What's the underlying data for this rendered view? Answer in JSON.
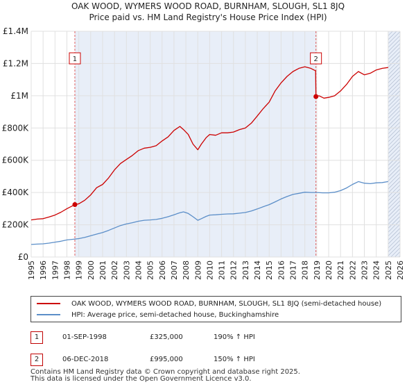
{
  "chart_data": {
    "type": "line",
    "title": "OAK WOOD, WYMERS WOOD ROAD, BURNHAM, SLOUGH, SL1 8JQ",
    "subtitle": "Price paid vs. HM Land Registry's House Price Index (HPI)",
    "xlim": [
      1995,
      2026
    ],
    "ylim": [
      0,
      1400000
    ],
    "x_ticks": [
      1995,
      1996,
      1997,
      1998,
      1999,
      2000,
      2001,
      2002,
      2003,
      2004,
      2005,
      2006,
      2007,
      2008,
      2009,
      2010,
      2011,
      2012,
      2013,
      2014,
      2015,
      2016,
      2017,
      2018,
      2019,
      2020,
      2021,
      2022,
      2023,
      2024,
      2025,
      2026
    ],
    "y_ticks": [
      {
        "value": 0,
        "label": "£0"
      },
      {
        "value": 200000,
        "label": "£200K"
      },
      {
        "value": 400000,
        "label": "£400K"
      },
      {
        "value": 600000,
        "label": "£600K"
      },
      {
        "value": 800000,
        "label": "£800K"
      },
      {
        "value": 1000000,
        "label": "£1M"
      },
      {
        "value": 1200000,
        "label": "£1.2M"
      },
      {
        "value": 1400000,
        "label": "£1.4M"
      }
    ],
    "grid": true,
    "colors": {
      "property": "#cc0000",
      "hpi": "#5b8ec8",
      "grid": "#e0e0e0",
      "shade": "#e8eef8",
      "vline": "#e06060"
    },
    "shaded_regions": [
      [
        1998.67,
        2018.93
      ],
      [
        2025.0,
        2026.0
      ]
    ],
    "series": [
      {
        "name": "OAK WOOD, WYMERS WOOD ROAD, BURNHAM, SLOUGH, SL1 8JQ (semi-detached house)",
        "color": "#cc0000",
        "x": [
          1995.0,
          1995.5,
          1996.0,
          1996.5,
          1997.0,
          1997.5,
          1998.0,
          1998.67,
          1999.0,
          1999.5,
          2000.0,
          2000.5,
          2001.0,
          2001.5,
          2002.0,
          2002.5,
          2003.0,
          2003.5,
          2004.0,
          2004.5,
          2005.0,
          2005.5,
          2006.0,
          2006.5,
          2007.0,
          2007.5,
          2007.8,
          2008.2,
          2008.6,
          2009.0,
          2009.3,
          2009.7,
          2010.0,
          2010.5,
          2011.0,
          2011.5,
          2012.0,
          2012.5,
          2013.0,
          2013.5,
          2014.0,
          2014.5,
          2015.0,
          2015.5,
          2016.0,
          2016.5,
          2017.0,
          2017.5,
          2018.0,
          2018.5,
          2018.9,
          2018.93,
          2019.2,
          2019.6,
          2020.0,
          2020.5,
          2021.0,
          2021.5,
          2022.0,
          2022.5,
          2023.0,
          2023.5,
          2024.0,
          2024.5,
          2025.0
        ],
        "values": [
          230000,
          235000,
          238000,
          248000,
          260000,
          278000,
          300000,
          325000,
          330000,
          352000,
          385000,
          430000,
          450000,
          490000,
          540000,
          580000,
          605000,
          630000,
          660000,
          675000,
          680000,
          690000,
          720000,
          745000,
          785000,
          810000,
          790000,
          760000,
          700000,
          665000,
          700000,
          740000,
          760000,
          755000,
          770000,
          770000,
          775000,
          790000,
          800000,
          830000,
          875000,
          920000,
          960000,
          1030000,
          1080000,
          1120000,
          1150000,
          1170000,
          1180000,
          1170000,
          1155000,
          995000,
          1000000,
          985000,
          990000,
          1000000,
          1030000,
          1070000,
          1120000,
          1150000,
          1130000,
          1140000,
          1160000,
          1170000,
          1175000
        ]
      },
      {
        "name": "HPI: Average price, semi-detached house, Buckinghamshire",
        "color": "#5b8ec8",
        "x": [
          1995.0,
          1995.5,
          1996.0,
          1996.5,
          1997.0,
          1997.5,
          1998.0,
          1998.5,
          1999.0,
          1999.5,
          2000.0,
          2000.5,
          2001.0,
          2001.5,
          2002.0,
          2002.5,
          2003.0,
          2003.5,
          2004.0,
          2004.5,
          2005.0,
          2005.5,
          2006.0,
          2006.5,
          2007.0,
          2007.5,
          2007.8,
          2008.2,
          2008.6,
          2009.0,
          2009.3,
          2009.7,
          2010.0,
          2010.5,
          2011.0,
          2011.5,
          2012.0,
          2012.5,
          2013.0,
          2013.5,
          2014.0,
          2014.5,
          2015.0,
          2015.5,
          2016.0,
          2016.5,
          2017.0,
          2017.5,
          2018.0,
          2018.5,
          2019.0,
          2019.5,
          2020.0,
          2020.5,
          2021.0,
          2021.5,
          2022.0,
          2022.5,
          2023.0,
          2023.5,
          2024.0,
          2024.5,
          2025.0
        ],
        "values": [
          78000,
          80000,
          82000,
          86000,
          92000,
          98000,
          106000,
          110000,
          114000,
          122000,
          132000,
          142000,
          152000,
          165000,
          180000,
          195000,
          205000,
          213000,
          222000,
          228000,
          230000,
          233000,
          240000,
          250000,
          262000,
          275000,
          280000,
          270000,
          250000,
          228000,
          238000,
          252000,
          260000,
          262000,
          265000,
          267000,
          268000,
          272000,
          276000,
          285000,
          298000,
          312000,
          325000,
          342000,
          360000,
          375000,
          388000,
          395000,
          402000,
          400000,
          400000,
          398000,
          398000,
          402000,
          412000,
          428000,
          450000,
          468000,
          458000,
          455000,
          460000,
          462000,
          468000
        ]
      }
    ],
    "sale_markers": [
      {
        "label": "1",
        "x": 1998.67,
        "value": 325000
      },
      {
        "label": "2",
        "x": 2018.93,
        "value": 995000
      }
    ]
  },
  "legend": {
    "property_label": "OAK WOOD, WYMERS WOOD ROAD, BURNHAM, SLOUGH, SL1 8JQ (semi-detached house)",
    "hpi_label": "HPI: Average price, semi-detached house, Buckinghamshire"
  },
  "sales": [
    {
      "num": "1",
      "date": "01-SEP-1998",
      "price": "£325,000",
      "hpi": "190% ↑ HPI"
    },
    {
      "num": "2",
      "date": "06-DEC-2018",
      "price": "£995,000",
      "hpi": "150% ↑ HPI"
    }
  ],
  "footer": {
    "line1": "Contains HM Land Registry data © Crown copyright and database right 2025.",
    "line2": "This data is licensed under the Open Government Licence v3.0."
  }
}
